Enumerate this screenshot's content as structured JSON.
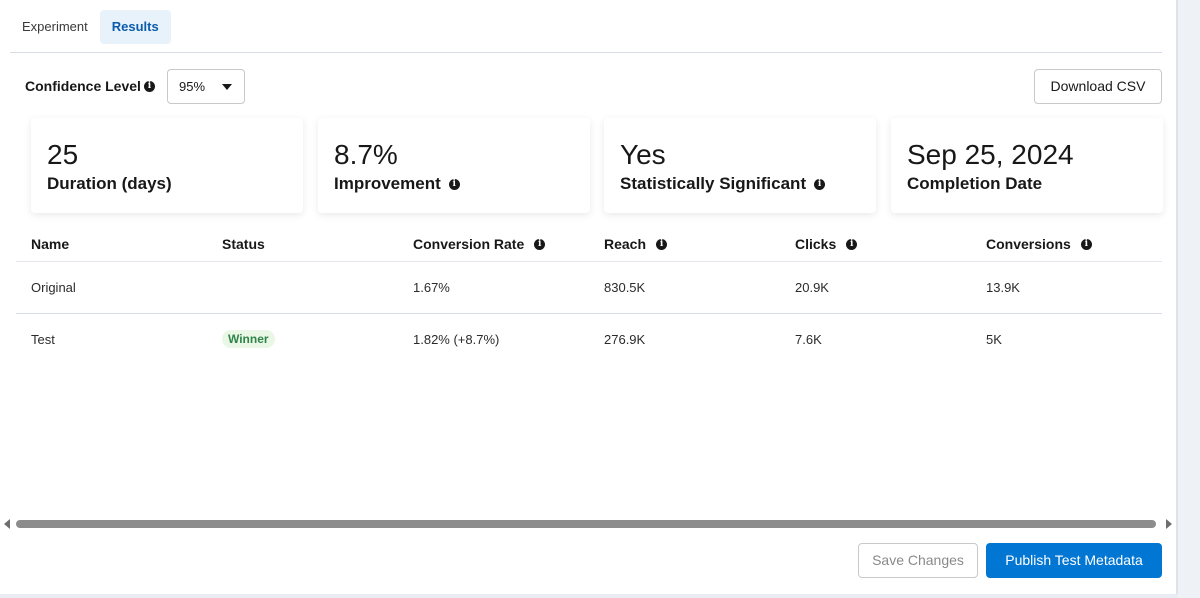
{
  "tabs": [
    {
      "label": "Experiment",
      "active": false
    },
    {
      "label": "Results",
      "active": true
    }
  ],
  "confidence": {
    "label": "Confidence Level",
    "selected": "95%"
  },
  "actions": {
    "download_csv": "Download CSV",
    "save_changes": "Save Changes",
    "publish": "Publish Test Metadata"
  },
  "cards": [
    {
      "value": "25",
      "label": "Duration (days)",
      "has_info": false
    },
    {
      "value": "8.7%",
      "label": "Improvement",
      "has_info": true
    },
    {
      "value": "Yes",
      "label": "Statistically Significant",
      "has_info": true
    },
    {
      "value": "Sep 25, 2024",
      "label": "Completion Date",
      "has_info": false
    }
  ],
  "table": {
    "headers": [
      "Name",
      "Status",
      "Conversion Rate",
      "Reach",
      "Clicks",
      "Conversions"
    ],
    "rows": [
      {
        "name": "Original",
        "status": "",
        "conversion_rate": "1.67%",
        "reach": "830.5K",
        "clicks": "20.9K",
        "conversions": "13.9K"
      },
      {
        "name": "Test",
        "status": "Winner",
        "conversion_rate": "1.82% (+8.7%)",
        "reach": "276.9K",
        "clicks": "7.6K",
        "conversions": "5K"
      }
    ]
  },
  "colors": {
    "accent": "#0176d3",
    "tab_active_bg": "#e8f2fb",
    "winner_text": "#2e844a",
    "winner_bg": "#ebf7e6"
  },
  "icons": {
    "info": "info-icon",
    "caret": "chevron-down-icon",
    "scroll_left": "arrow-left-icon",
    "scroll_right": "arrow-right-icon"
  }
}
